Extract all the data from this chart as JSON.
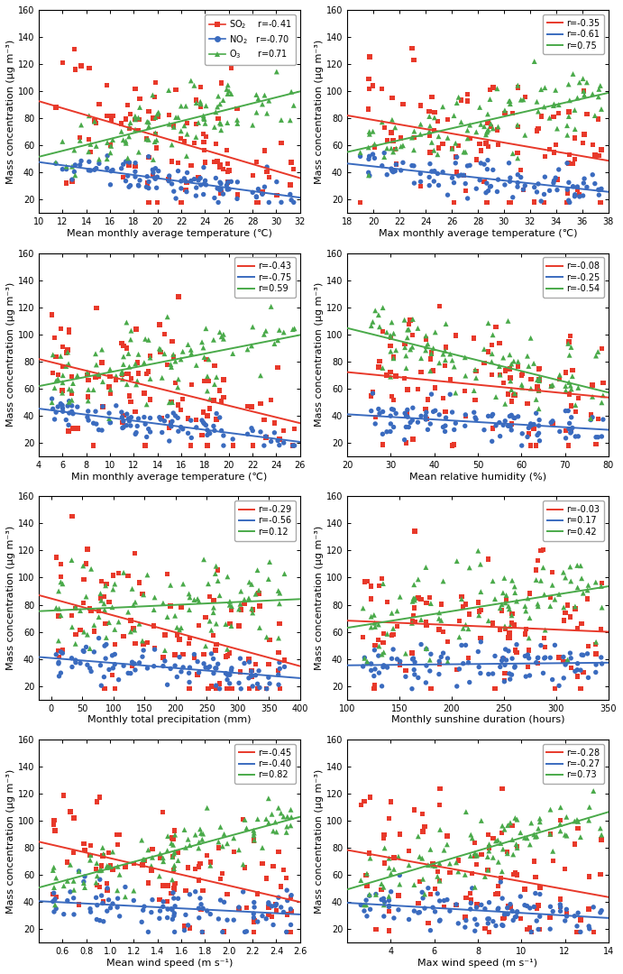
{
  "panels": [
    {
      "xlabel": "Mean monthly average temperature (℃)",
      "xlim": [
        10,
        32
      ],
      "xticks": [
        10,
        12,
        14,
        16,
        18,
        20,
        22,
        24,
        26,
        28,
        30,
        32
      ],
      "r_so2": -0.41,
      "r_no2": -0.7,
      "r_o3": 0.71,
      "show_species_legend": true
    },
    {
      "xlabel": "Max monthly average temperature (℃)",
      "xlim": [
        18,
        38
      ],
      "xticks": [
        18,
        20,
        22,
        24,
        26,
        28,
        30,
        32,
        34,
        36,
        38
      ],
      "r_so2": -0.35,
      "r_no2": -0.61,
      "r_o3": 0.75,
      "show_species_legend": false
    },
    {
      "xlabel": "Min monthly average temperature (℃)",
      "xlim": [
        4,
        26
      ],
      "xticks": [
        4,
        6,
        8,
        10,
        12,
        14,
        16,
        18,
        20,
        22,
        24,
        26
      ],
      "r_so2": -0.43,
      "r_no2": -0.75,
      "r_o3": 0.59,
      "show_species_legend": false
    },
    {
      "xlabel": "Mean relative humidity (%)",
      "xlim": [
        20,
        80
      ],
      "xticks": [
        20,
        30,
        40,
        50,
        60,
        70,
        80
      ],
      "r_so2": -0.08,
      "r_no2": -0.25,
      "r_o3": -0.54,
      "show_species_legend": false
    },
    {
      "xlabel": "Monthly total precipitation (mm)",
      "xlim": [
        -20,
        400
      ],
      "xticks": [
        0,
        50,
        100,
        150,
        200,
        250,
        300,
        350,
        400
      ],
      "r_so2": -0.29,
      "r_no2": -0.56,
      "r_o3": 0.12,
      "show_species_legend": false
    },
    {
      "xlabel": "Monthly sunshine duration (hours)",
      "xlim": [
        100,
        350
      ],
      "xticks": [
        100,
        150,
        200,
        250,
        300,
        350
      ],
      "r_so2": -0.03,
      "r_no2": 0.17,
      "r_o3": 0.42,
      "show_species_legend": false
    },
    {
      "xlabel": "Mean wind speed (m s⁻¹)",
      "xlim": [
        0.4,
        2.6
      ],
      "xticks": [
        0.6,
        0.8,
        1.0,
        1.2,
        1.4,
        1.6,
        1.8,
        2.0,
        2.2,
        2.4,
        2.6
      ],
      "r_so2": -0.45,
      "r_no2": -0.4,
      "r_o3": 0.82,
      "show_species_legend": false
    },
    {
      "xlabel": "Max wind speed (m s⁻¹)",
      "xlim": [
        2,
        14
      ],
      "xticks": [
        4,
        6,
        8,
        10,
        12,
        14
      ],
      "r_so2": -0.28,
      "r_no2": -0.27,
      "r_o3": 0.73,
      "show_species_legend": false
    }
  ],
  "ylim": [
    10,
    160
  ],
  "yticks": [
    20,
    40,
    60,
    80,
    100,
    120,
    140,
    160
  ],
  "ylabel": "Mass concentration (μg m⁻³)",
  "colors": {
    "so2": "#e8392a",
    "no2": "#3a6bbf",
    "o3": "#4aaa4a"
  },
  "background": "#ffffff",
  "so2_mean": 62,
  "so2_std": 28,
  "no2_mean": 35,
  "no2_std": 9,
  "o3_mean": 78,
  "o3_std": 18,
  "n_points": 100
}
